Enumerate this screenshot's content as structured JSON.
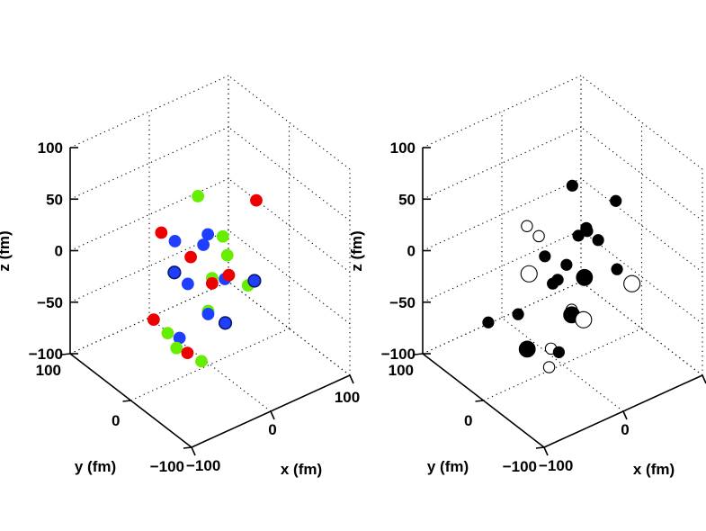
{
  "chart_data": [
    {
      "type": "scatter3d",
      "panel": "left",
      "xlabel": "x (fm)",
      "ylabel": "y (fm)",
      "zlabel": "z (fm)",
      "xlim": [
        -100,
        100
      ],
      "ylim": [
        -100,
        100
      ],
      "zlim": [
        -100,
        100
      ],
      "xticks": [
        "−100",
        "0",
        "100"
      ],
      "yticks": [
        "−100",
        "0",
        "100"
      ],
      "zticks": [
        "−100",
        "−50",
        "0",
        "50",
        "100"
      ],
      "grid": true,
      "colors": {
        "red": "#ee0000",
        "green": "#66ee00",
        "blue": "#1f3fff",
        "outline": "#0a1a66"
      },
      "points": [
        {
          "x": -60,
          "y": 2,
          "z": 48,
          "color": "red",
          "style": "filled",
          "size": "small"
        },
        {
          "x": -6,
          "y": 12,
          "z": 60,
          "color": "green",
          "style": "filled",
          "size": "small"
        },
        {
          "x": -42,
          "y": 3,
          "z": 33,
          "color": "blue",
          "style": "filled",
          "size": "small"
        },
        {
          "x": -32,
          "y": -10,
          "z": 20,
          "color": "red",
          "style": "filled",
          "size": "small"
        },
        {
          "x": 5,
          "y": 10,
          "z": 20,
          "color": "blue",
          "style": "filled",
          "size": "small"
        },
        {
          "x": -3,
          "y": 7,
          "z": 14,
          "color": "blue",
          "style": "filled",
          "size": "small"
        },
        {
          "x": 20,
          "y": 5,
          "z": 15,
          "color": "green",
          "style": "filled",
          "size": "small"
        },
        {
          "x": 70,
          "y": 15,
          "z": 28,
          "color": "red",
          "style": "filled",
          "size": "small"
        },
        {
          "x": -45,
          "y": 0,
          "z": 5,
          "color": "blue",
          "style": "outline",
          "size": "small"
        },
        {
          "x": 18,
          "y": -5,
          "z": 2,
          "color": "green",
          "style": "filled",
          "size": "small"
        },
        {
          "x": -28,
          "y": 0,
          "z": -12,
          "color": "blue",
          "style": "filled",
          "size": "small"
        },
        {
          "x": -5,
          "y": -10,
          "z": -10,
          "color": "green",
          "style": "filled",
          "size": "small"
        },
        {
          "x": -5,
          "y": -10,
          "z": -15,
          "color": "red",
          "style": "filled",
          "size": "small"
        },
        {
          "x": 15,
          "y": -5,
          "z": -20,
          "color": "blue",
          "style": "filled",
          "size": "small"
        },
        {
          "x": 20,
          "y": -5,
          "z": -18,
          "color": "red",
          "style": "filled",
          "size": "small"
        },
        {
          "x": 48,
          "y": 0,
          "z": -40,
          "color": "green",
          "style": "filled",
          "size": "small"
        },
        {
          "x": -75,
          "y": -5,
          "z": -28,
          "color": "red",
          "style": "filled",
          "size": "small"
        },
        {
          "x": -65,
          "y": -15,
          "z": -40,
          "color": "green",
          "style": "filled",
          "size": "small"
        },
        {
          "x": -50,
          "y": -15,
          "z": -50,
          "color": "blue",
          "style": "filled",
          "size": "small"
        },
        {
          "x": -10,
          "y": -10,
          "z": -40,
          "color": "green",
          "style": "filled",
          "size": "small"
        },
        {
          "x": -10,
          "y": -10,
          "z": -43,
          "color": "blue",
          "style": "filled",
          "size": "small"
        },
        {
          "x": 4,
          "y": -20,
          "z": -52,
          "color": "blue",
          "style": "outline",
          "size": "small"
        },
        {
          "x": 60,
          "y": 5,
          "z": -42,
          "color": "blue",
          "style": "outline",
          "size": "small"
        },
        {
          "x": -50,
          "y": -10,
          "z": -62,
          "color": "green",
          "style": "filled",
          "size": "small"
        },
        {
          "x": -40,
          "y": -15,
          "z": -68,
          "color": "red",
          "style": "filled",
          "size": "small"
        },
        {
          "x": -30,
          "y": -25,
          "z": -75,
          "color": "green",
          "style": "filled",
          "size": "small"
        }
      ]
    },
    {
      "type": "scatter3d",
      "panel": "right",
      "xlabel": "x (fm)",
      "ylabel": "y (fm)",
      "zlabel": "z (fm)",
      "xlim": [
        -100,
        100
      ],
      "ylim": [
        -100,
        100
      ],
      "zlim": [
        -100,
        100
      ],
      "xticks": [
        "−100",
        "0"
      ],
      "yticks": [
        "−100",
        "0",
        "100"
      ],
      "zticks": [
        "−100",
        "−50",
        "0",
        "50",
        "100"
      ],
      "grid": true,
      "colors": {
        "filled": "#000000",
        "open": "#ffffff"
      },
      "points": [
        {
          "x": -45,
          "y": 0,
          "z": 50,
          "style": "open",
          "size": "small"
        },
        {
          "x": 20,
          "y": 10,
          "z": 62,
          "style": "filled",
          "size": "small"
        },
        {
          "x": -30,
          "y": 0,
          "z": 35,
          "style": "open",
          "size": "small"
        },
        {
          "x": -30,
          "y": -10,
          "z": 20,
          "style": "filled",
          "size": "small"
        },
        {
          "x": 30,
          "y": 0,
          "z": 22,
          "style": "filled",
          "size": "small"
        },
        {
          "x": 20,
          "y": 0,
          "z": 18,
          "style": "filled",
          "size": "small"
        },
        {
          "x": 35,
          "y": 5,
          "z": 15,
          "style": "filled",
          "size": "small"
        },
        {
          "x": 75,
          "y": 10,
          "z": 28,
          "style": "filled",
          "size": "small"
        },
        {
          "x": -50,
          "y": -10,
          "z": 10,
          "style": "open",
          "size": "large"
        },
        {
          "x": 45,
          "y": 0,
          "z": 5,
          "style": "filled",
          "size": "small"
        },
        {
          "x": 5,
          "y": 0,
          "z": -5,
          "style": "filled",
          "size": "small"
        },
        {
          "x": -20,
          "y": -10,
          "z": -10,
          "style": "filled",
          "size": "small"
        },
        {
          "x": -10,
          "y": -5,
          "z": -12,
          "style": "filled",
          "size": "small"
        },
        {
          "x": 20,
          "y": -10,
          "z": -18,
          "style": "filled",
          "size": "large"
        },
        {
          "x": -90,
          "y": 5,
          "z": -30,
          "style": "filled",
          "size": "small"
        },
        {
          "x": -60,
          "y": -5,
          "z": -28,
          "style": "filled",
          "size": "small"
        },
        {
          "x": 0,
          "y": -15,
          "z": -40,
          "style": "open",
          "size": "small"
        },
        {
          "x": 0,
          "y": -15,
          "z": -45,
          "style": "filled",
          "size": "large"
        },
        {
          "x": -60,
          "y": -20,
          "z": -55,
          "style": "filled",
          "size": "large"
        },
        {
          "x": 65,
          "y": -5,
          "z": -28,
          "style": "filled",
          "size": "small"
        },
        {
          "x": 80,
          "y": -10,
          "z": -45,
          "style": "open",
          "size": "large"
        },
        {
          "x": 15,
          "y": -15,
          "z": -55,
          "style": "open",
          "size": "large"
        },
        {
          "x": -30,
          "y": -20,
          "z": -65,
          "style": "open",
          "size": "small"
        },
        {
          "x": -20,
          "y": -20,
          "z": -72,
          "style": "filled",
          "size": "small"
        },
        {
          "x": -40,
          "y": -30,
          "z": -75,
          "style": "open",
          "size": "small"
        }
      ]
    }
  ]
}
